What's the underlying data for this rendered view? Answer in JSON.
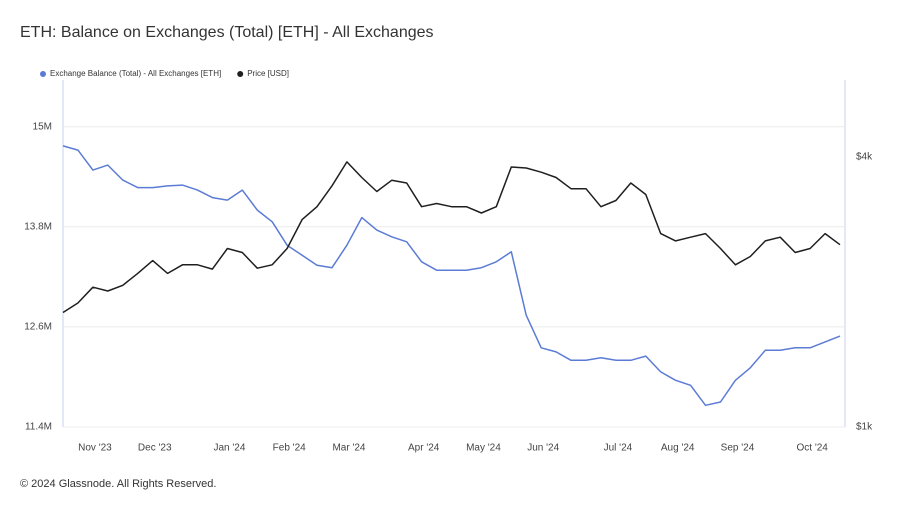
{
  "chart_data": {
    "type": "line",
    "title": "ETH: Balance on Exchanges (Total) [ETH] - All Exchanges",
    "footer": "© 2024 Glassnode. All Rights Reserved.",
    "categories": [
      null,
      "Nov '23",
      null,
      null,
      null,
      "Dec '23",
      null,
      null,
      null,
      null,
      "Jan '24",
      null,
      null,
      null,
      "Feb '24",
      null,
      null,
      null,
      "Mar '24",
      null,
      null,
      null,
      null,
      "Apr '24",
      null,
      null,
      null,
      "May '24",
      null,
      null,
      null,
      "Jun '24",
      null,
      null,
      null,
      null,
      "Jul '24",
      null,
      null,
      null,
      "Aug '24",
      null,
      null,
      null,
      "Sep '24",
      null,
      null,
      null,
      null,
      "Oct '24",
      null,
      null,
      null
    ],
    "series": [
      {
        "name": "Exchange Balance (Total) - All Exchanges [ETH]",
        "color": "#5b7bd5",
        "axis": "y",
        "values": [
          14770000,
          14720000,
          14480000,
          14540000,
          14360000,
          14270000,
          14270000,
          14290000,
          14300000,
          14240000,
          14150000,
          14120000,
          14240000,
          14000000,
          13860000,
          13580000,
          13460000,
          13340000,
          13310000,
          13580000,
          13910000,
          13760000,
          13680000,
          13620000,
          13380000,
          13280000,
          13280000,
          13280000,
          13310000,
          13380000,
          13500000,
          12740000,
          12350000,
          12300000,
          12200000,
          12200000,
          12230000,
          12200000,
          12200000,
          12250000,
          12060000,
          11960000,
          11900000,
          11660000,
          11700000,
          11960000,
          12110000,
          12320000,
          12320000,
          12350000,
          12350000,
          12420000,
          12490000
        ]
      },
      {
        "name": "Price [USD]",
        "color": "#1f1f1f",
        "axis": "y2",
        "values": [
          1800,
          1890,
          2050,
          2010,
          2070,
          2200,
          2350,
          2200,
          2300,
          2300,
          2250,
          2500,
          2450,
          2260,
          2300,
          2500,
          2900,
          3100,
          3450,
          3900,
          3600,
          3350,
          3550,
          3500,
          3100,
          3150,
          3100,
          3100,
          3000,
          3100,
          3800,
          3780,
          3700,
          3600,
          3400,
          3400,
          3100,
          3200,
          3500,
          3300,
          2700,
          2600,
          2650,
          2700,
          2500,
          2300,
          2400,
          2600,
          2650,
          2450,
          2500,
          2700,
          2550
        ]
      }
    ],
    "ylim": [
      11400000,
      15560000
    ],
    "yticks": [
      {
        "value": 11400000,
        "label": "11.4M"
      },
      {
        "value": 12600000,
        "label": "12.6M"
      },
      {
        "value": 13800000,
        "label": "13.8M"
      },
      {
        "value": 15000000,
        "label": "15M"
      }
    ],
    "y2lim": [
      1000,
      5940
    ],
    "y2ticks": [
      {
        "value": 1000,
        "label": "$1k"
      },
      {
        "value": 4000,
        "label": "$4k"
      }
    ],
    "y2scale": "log",
    "grid": true,
    "legend": "top-left"
  }
}
